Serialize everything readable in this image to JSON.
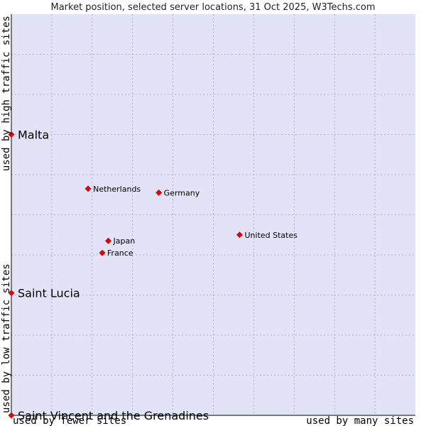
{
  "chart_data": {
    "type": "scatter",
    "title": "Market position, selected server locations, 31 Oct 2025, W3Techs.com",
    "xlabel_left": "used by fewer sites",
    "xlabel_right": "used by many sites",
    "ylabel_bottom": "used by low traffic sites",
    "ylabel_top": "used by high traffic sites",
    "xlim": [
      0,
      100
    ],
    "ylim": [
      0,
      100
    ],
    "grid": true,
    "colors": {
      "plot_bg": "#e3e3f8",
      "grid": "#9e9ebd",
      "point": "#ee0000",
      "point_edge": "#990000",
      "axis": "#000000"
    },
    "points": [
      {
        "name": "Malta",
        "x": 0,
        "y": 70.0,
        "emphasis": true
      },
      {
        "name": "Saint Lucia",
        "x": 0,
        "y": 30.5,
        "emphasis": true
      },
      {
        "name": "Saint Vincent and the Grenadines",
        "x": 0,
        "y": 0,
        "emphasis": true
      },
      {
        "name": "Netherlands",
        "x": 19.0,
        "y": 56.5,
        "emphasis": false
      },
      {
        "name": "Germany",
        "x": 36.5,
        "y": 55.5,
        "emphasis": false
      },
      {
        "name": "United States",
        "x": 56.5,
        "y": 45.0,
        "emphasis": false
      },
      {
        "name": "Japan",
        "x": 24.0,
        "y": 43.5,
        "emphasis": false
      },
      {
        "name": "France",
        "x": 22.5,
        "y": 40.5,
        "emphasis": false
      }
    ]
  }
}
